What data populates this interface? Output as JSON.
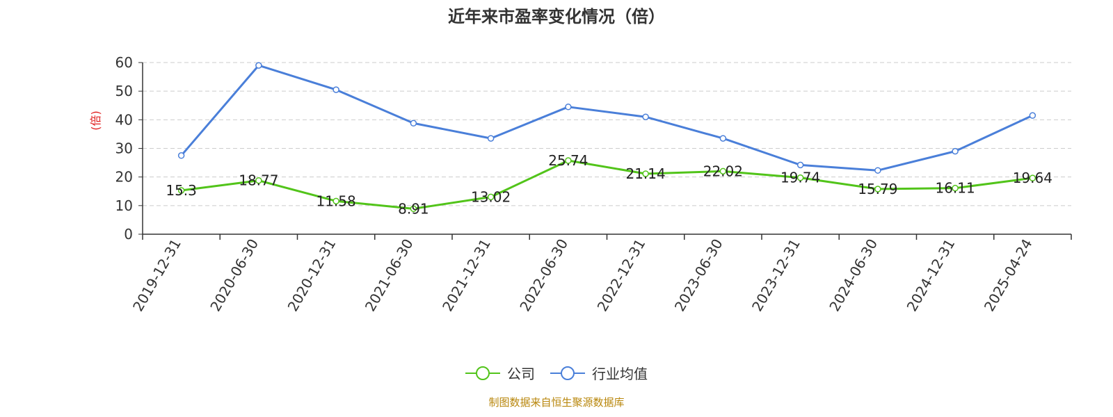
{
  "title": "近年来市盈率变化情况（倍）",
  "footer": "制图数据来自恒生聚源数据库",
  "colors": {
    "company": "#52c41a",
    "industry": "#4a7fd9",
    "ylabel": "#e02020",
    "footer": "#b8860b",
    "grid": "#cccccc",
    "axis": "#333333"
  },
  "legend": [
    {
      "label": "公司",
      "series": "company",
      "icon": "circle-line-icon"
    },
    {
      "label": "行业均值",
      "series": "industry",
      "icon": "circle-line-icon"
    }
  ],
  "chart_data": {
    "type": "line",
    "title": "近年来市盈率变化情况（倍）",
    "ylabel": "(倍)",
    "xlabel": "",
    "ylim": [
      0,
      60
    ],
    "yticks": [
      "0",
      "10",
      "20",
      "30",
      "40",
      "50",
      "60"
    ],
    "grid": true,
    "legend_position": "bottom",
    "categories": [
      "2019-12-31",
      "2020-06-30",
      "2020-12-31",
      "2021-06-30",
      "2021-12-31",
      "2022-06-30",
      "2022-12-31",
      "2023-06-30",
      "2023-12-31",
      "2024-06-30",
      "2024-12-31",
      "2025-04-24"
    ],
    "series": [
      {
        "name": "公司",
        "key": "company",
        "values": [
          15.3,
          18.77,
          11.58,
          8.91,
          13.02,
          25.74,
          21.14,
          22.02,
          19.74,
          15.79,
          16.11,
          19.64
        ],
        "labels": [
          "15.3",
          "18.77",
          "11.58",
          "8.91",
          "13.02",
          "25.74",
          "21.14",
          "22.02",
          "19.74",
          "15.79",
          "16.11",
          "19.64"
        ]
      },
      {
        "name": "行业均值",
        "key": "industry",
        "values": [
          27.5,
          59.0,
          50.5,
          38.8,
          33.5,
          44.5,
          41.0,
          33.5,
          24.2,
          22.3,
          29.0,
          41.5
        ]
      }
    ]
  }
}
